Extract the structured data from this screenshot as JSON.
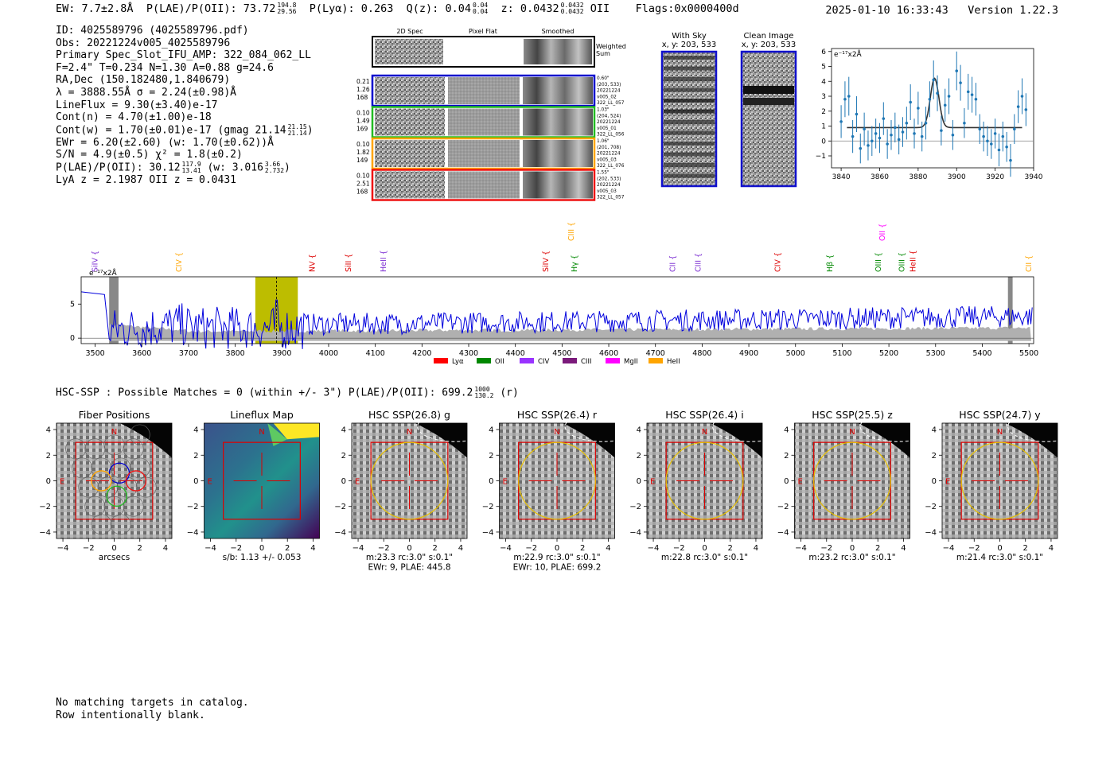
{
  "header": {
    "ew": "EW: 7.7±2.8Å",
    "plae_label": "P(LAE)/P(OII): 73.72",
    "plae_hi": "194.8",
    "plae_lo": "29.56",
    "plya": "P(Lyα): 0.263",
    "qz_label": "Q(z): 0.04",
    "qz_hi": "0.04",
    "qz_lo": "0.04",
    "z_label": "z: 0.0432",
    "z_hi": "0.0432",
    "z_lo": "0.0432",
    "z_line": "OII",
    "flags": "Flags:0x0000400d",
    "timestamp": "2025-01-10 16:33:43",
    "version": "Version 1.22.3"
  },
  "info": {
    "id": "ID: 4025589796 (4025589796.pdf)",
    "obs": "Obs: 20221224v005_4025589796",
    "slot": "Primary Spec_Slot_IFU_AMP: 322_084_062_LL",
    "params": "F=2.4\"  T=0.234  N=1.30  A=0.88  g=24.6",
    "radec": "RA,Dec (150.182480,1.840679)",
    "lambda": "λ = 3888.55Å  σ = 2.24(±0.98)Å",
    "lineflux": "LineFlux = 9.30(±3.40)e-17",
    "cont_n": "Cont(n) = 4.70(±1.00)e-18",
    "cont_w": "Cont(w) = 1.70(±0.01)e-17 (gmag 21.14",
    "gmag_hi": "21.15",
    "gmag_lo": "21.14",
    "cont_w_close": ")",
    "ewr": "EWr = 6.20(±2.60) (w: 1.70(±0.62))Å",
    "sn": "S/N = 4.9(±0.5)  χ² = 1.8(±0.2)",
    "plae": "P(LAE)/P(OII): 30.12",
    "plae_hi": "117.9",
    "plae_lo": "13.41",
    "plae_w": "(w: 3.016",
    "plae_w_hi": "3.66",
    "plae_w_lo": "2.732",
    "plae_w_close": ")",
    "redshifts": "LyA z = 2.1987   OII z = 0.0431"
  },
  "cutouts": {
    "col_labels": [
      "2D Spec",
      "Pixel Flat",
      "Smoothed"
    ],
    "weighted_sum": [
      "Weighted",
      "Sum"
    ],
    "rows": [
      {
        "left": [
          "0.21",
          "1.26",
          "168"
        ],
        "right": [
          "0.60\"",
          "(203, 533)",
          "20221224",
          "v005_02",
          "322_LL_057"
        ],
        "color": "#0000cc"
      },
      {
        "left": [
          "0.10",
          "1.49",
          "169"
        ],
        "right": [
          "1.03\"",
          "(204, 524)",
          "20221224",
          "v005_01",
          "322_LL_056"
        ],
        "color": "#22bb22"
      },
      {
        "left": [
          "0.10",
          "1.82",
          "149"
        ],
        "right": [
          "1.06\"",
          "(201, 708)",
          "20221224",
          "v005_03",
          "322_LL_076"
        ],
        "color": "#ffa500"
      },
      {
        "left": [
          "0.10",
          "2.51",
          "168"
        ],
        "right": [
          "1.55\"",
          "(202, 533)",
          "20221224",
          "v005_03",
          "322_LL_057"
        ],
        "color": "#ee1111"
      }
    ],
    "with_sky": [
      "With Sky",
      "x, y: 203, 533"
    ],
    "clean_image": [
      "Clean Image",
      "x, y: 203, 533"
    ]
  },
  "chart_data": [
    {
      "type": "scatter",
      "title": "",
      "units_label": "e⁻¹⁷x2Å",
      "xlim": [
        3835,
        3940
      ],
      "ylim": [
        -1.8,
        6.2
      ],
      "xticks": [
        3840,
        3860,
        3880,
        3900,
        3920,
        3940
      ],
      "yticks": [
        -1,
        0,
        1,
        2,
        3,
        4,
        5,
        6
      ],
      "points": {
        "x": [
          3840,
          3842,
          3844,
          3846,
          3848,
          3850,
          3852,
          3854,
          3856,
          3858,
          3860,
          3862,
          3864,
          3866,
          3868,
          3870,
          3872,
          3874,
          3876,
          3878,
          3880,
          3882,
          3884,
          3886,
          3888,
          3890,
          3892,
          3894,
          3896,
          3898,
          3900,
          3902,
          3904,
          3906,
          3908,
          3910,
          3912,
          3914,
          3916,
          3918,
          3920,
          3922,
          3924,
          3926,
          3928,
          3930,
          3932,
          3934,
          3936
        ],
        "y": [
          1.3,
          2.8,
          3.0,
          0.3,
          1.8,
          -0.5,
          0.8,
          -0.3,
          0.0,
          0.5,
          0.2,
          1.5,
          -0.2,
          0.4,
          0.9,
          0.1,
          0.6,
          1.2,
          2.6,
          0.5,
          2.2,
          0.3,
          1.2,
          2.8,
          4.1,
          3.2,
          0.7,
          2.4,
          3.0,
          0.4,
          4.7,
          3.9,
          1.2,
          3.3,
          3.1,
          2.8,
          0.8,
          0.3,
          0.0,
          -0.2,
          0.5,
          -0.6,
          0.3,
          -0.4,
          -1.3,
          0.8,
          2.3,
          3.0,
          2.1
        ],
        "err": [
          1.1,
          1.2,
          1.3,
          1.1,
          1.2,
          1.0,
          1.1,
          1.0,
          1.0,
          1.0,
          1.0,
          1.1,
          1.0,
          1.0,
          1.0,
          1.0,
          1.0,
          1.1,
          1.2,
          1.0,
          1.1,
          1.0,
          1.1,
          1.2,
          1.3,
          1.2,
          1.0,
          1.1,
          1.2,
          1.0,
          1.3,
          1.2,
          1.0,
          1.2,
          1.2,
          1.1,
          1.0,
          1.0,
          1.0,
          1.0,
          1.0,
          1.1,
          1.0,
          1.0,
          1.1,
          1.0,
          1.1,
          1.2,
          1.1
        ]
      },
      "fit": {
        "continuum": 0.9,
        "center": 3888.55,
        "sigma": 2.24,
        "amplitude": 3.3
      }
    },
    {
      "type": "line",
      "title": "",
      "units_label": "e⁻¹⁷x2Å",
      "xlim": [
        3470,
        5510
      ],
      "ylim": [
        -0.8,
        9.0
      ],
      "xticks": [
        3500,
        3600,
        3700,
        3800,
        3900,
        4000,
        4100,
        4200,
        4300,
        4400,
        4500,
        4600,
        4700,
        4800,
        4900,
        5000,
        5100,
        5200,
        5300,
        5400,
        5500
      ],
      "yticks": [
        0,
        5
      ],
      "highlight_range": [
        3843,
        3934
      ],
      "detection_wavelength": 3888.55,
      "masked_regions": [
        [
          3530,
          3550
        ],
        [
          5455,
          5465
        ]
      ],
      "line_labels": [
        {
          "name": "SiIV",
          "wave": 3500,
          "color": "#7b2cd2",
          "tier": 0
        },
        {
          "name": "CIV",
          "wave": 3680,
          "color": "#ffa500",
          "tier": 0
        },
        {
          "name": "NV",
          "wave": 3965,
          "color": "#dd0000",
          "tier": 0
        },
        {
          "name": "SiII",
          "wave": 4043,
          "color": "#dd0000",
          "tier": 0
        },
        {
          "name": "HeII",
          "wave": 4118,
          "color": "#7b2cd2",
          "tier": 0
        },
        {
          "name": "SiIV",
          "wave": 4465,
          "color": "#dd0000",
          "tier": 0
        },
        {
          "name": "CIII",
          "wave": 4520,
          "color": "#ffa500",
          "tier": 1
        },
        {
          "name": "Hγ",
          "wave": 4527,
          "color": "#008800",
          "tier": 0
        },
        {
          "name": "CII",
          "wave": 4737,
          "color": "#7b2cd2",
          "tier": 0
        },
        {
          "name": "CIII",
          "wave": 4792,
          "color": "#7b2cd2",
          "tier": 0
        },
        {
          "name": "CIV",
          "wave": 4962,
          "color": "#dd0000",
          "tier": 0
        },
        {
          "name": "Hβ",
          "wave": 5074,
          "color": "#008800",
          "tier": 0
        },
        {
          "name": "OIII",
          "wave": 5178,
          "color": "#008800",
          "tier": 0
        },
        {
          "name": "OII",
          "wave": 5186,
          "color": "#ff00ff",
          "tier": 1
        },
        {
          "name": "OIII",
          "wave": 5228,
          "color": "#008800",
          "tier": 0
        },
        {
          "name": "HeII",
          "wave": 5252,
          "color": "#dd0000",
          "tier": 0
        },
        {
          "name": "CII",
          "wave": 5500,
          "color": "#ffa500",
          "tier": 0
        }
      ],
      "legend": [
        {
          "label": "Lyα",
          "color": "#ff0000"
        },
        {
          "label": "OII",
          "color": "#008800"
        },
        {
          "label": "CIV",
          "color": "#9933ff"
        },
        {
          "label": "CIII",
          "color": "#7b1a7b"
        },
        {
          "label": "MgII",
          "color": "#ff00ff"
        },
        {
          "label": "HeII",
          "color": "#ffa500"
        }
      ],
      "series": [
        {
          "name": "flux",
          "color": "#0000dd",
          "mean": 2.6
        },
        {
          "name": "error",
          "color": "#aaaaaa",
          "mean": 1.2
        }
      ]
    }
  ],
  "hsc": {
    "line": "HSC-SSP : Possible Matches = 0 (within +/- 3\")  P(LAE)/P(OII): 699.2",
    "hi": "1000",
    "lo": "130.2",
    "band": "(r)",
    "ticks": [
      "4",
      "2",
      "0",
      "−2",
      "−4"
    ],
    "panels": [
      {
        "title": "Fiber Positions",
        "caption": [
          "arcsecs"
        ],
        "kind": "fiber"
      },
      {
        "title": "Lineflux Map",
        "caption": [
          "s/b: 1.13 +/- 0.053"
        ],
        "kind": "lineflux"
      },
      {
        "title": "HSC SSP(26.8) g",
        "caption": [
          "m:23.3 rc:3.0\"  s:0.1\"",
          "EWr: 9, PLAE: 445.8"
        ],
        "kind": "hsc"
      },
      {
        "title": "HSC SSP(26.4) r",
        "caption": [
          "m:22.9 rc:3.0\"  s:0.1\"",
          "EWr: 10, PLAE: 699.2"
        ],
        "kind": "hsc"
      },
      {
        "title": "HSC SSP(26.4) i",
        "caption": [
          "m:22.8 rc:3.0\"  s:0.1\""
        ],
        "kind": "hsc"
      },
      {
        "title": "HSC SSP(25.5) z",
        "caption": [
          "m:23.2 rc:3.0\"  s:0.1\""
        ],
        "kind": "hsc"
      },
      {
        "title": "HSC SSP(24.7) y",
        "caption": [
          "m:21.4 rc:3.0\"  s:0.1\""
        ],
        "kind": "hsc"
      }
    ],
    "compass_n": "N",
    "compass_e": "E"
  },
  "footer": {
    "line1": "No matching targets in catalog.",
    "line2": "Row intentionally blank."
  }
}
